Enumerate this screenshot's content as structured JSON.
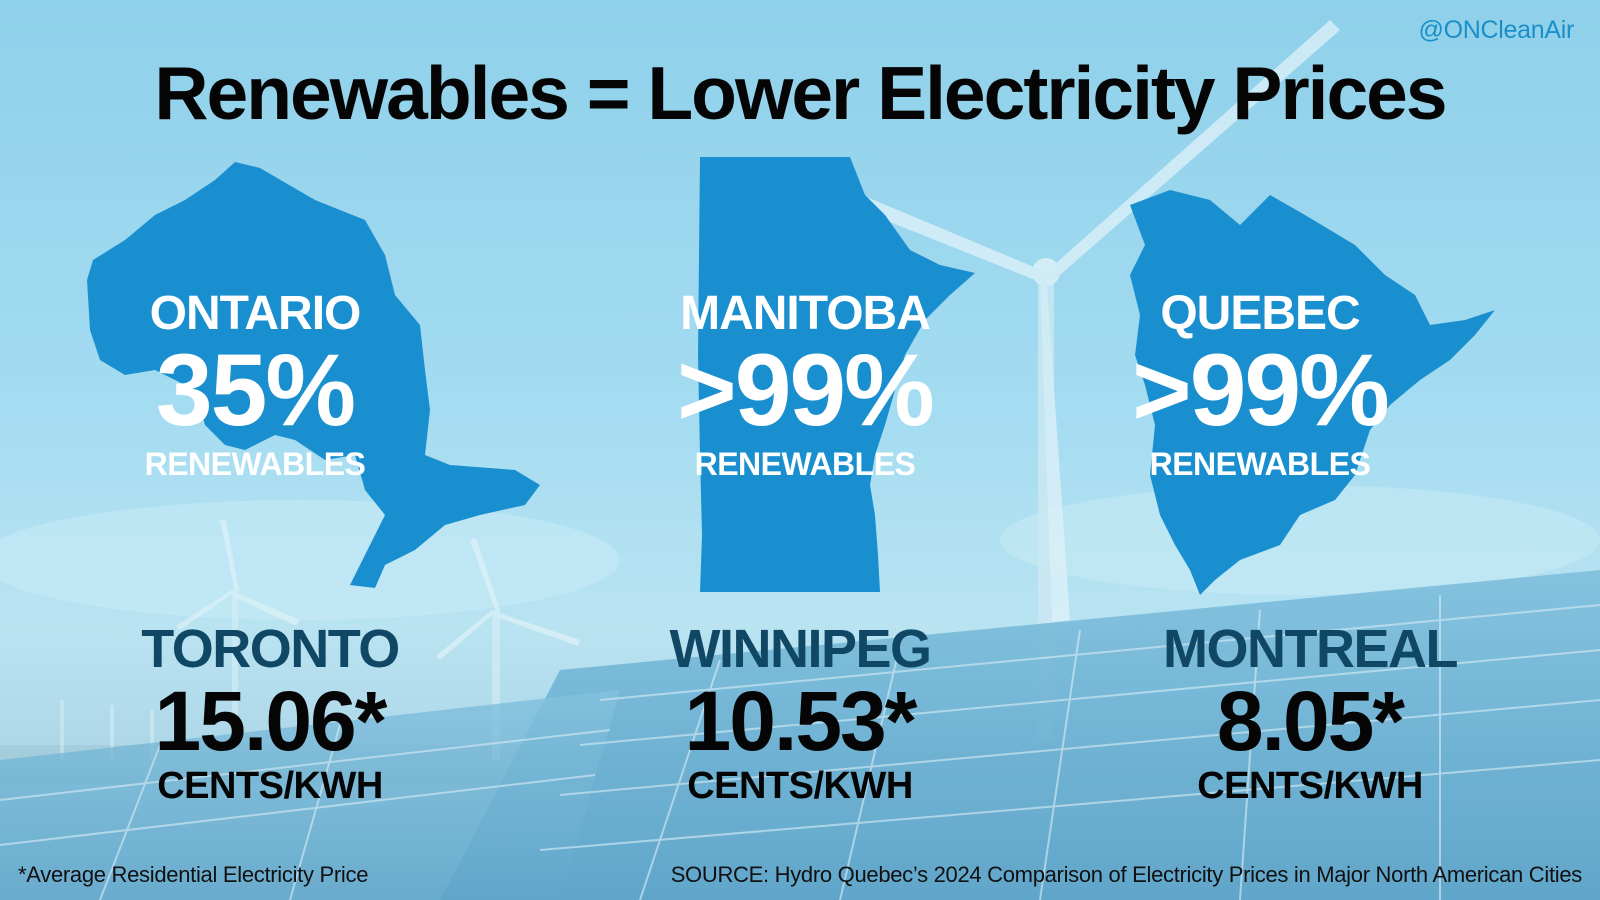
{
  "handle": "@ONCleanAir",
  "title": "Renewables = Lower Electricity Prices",
  "colors": {
    "province_fill": "#1a8fd0",
    "city_name": "#0f4764",
    "price_text": "#050505",
    "handle": "#1a8fc9"
  },
  "provinces": [
    {
      "name": "ONTARIO",
      "renewable_pct": "35%",
      "label": "RENEWABLES"
    },
    {
      "name": "MANITOBA",
      "renewable_pct": ">99%",
      "label": "RENEWABLES"
    },
    {
      "name": "QUEBEC",
      "renewable_pct": ">99%",
      "label": "RENEWABLES"
    }
  ],
  "cities": [
    {
      "name": "TORONTO",
      "price": "15.06*",
      "unit": "CENTS/KWH"
    },
    {
      "name": "WINNIPEG",
      "price": "10.53*",
      "unit": "CENTS/KWH"
    },
    {
      "name": "MONTREAL",
      "price": "8.05*",
      "unit": "CENTS/KWH"
    }
  ],
  "footnote": "*Average Residential Electricity Price",
  "source": "SOURCE: Hydro Quebec’s 2024 Comparison of Electricity Prices in Major North American Cities"
}
